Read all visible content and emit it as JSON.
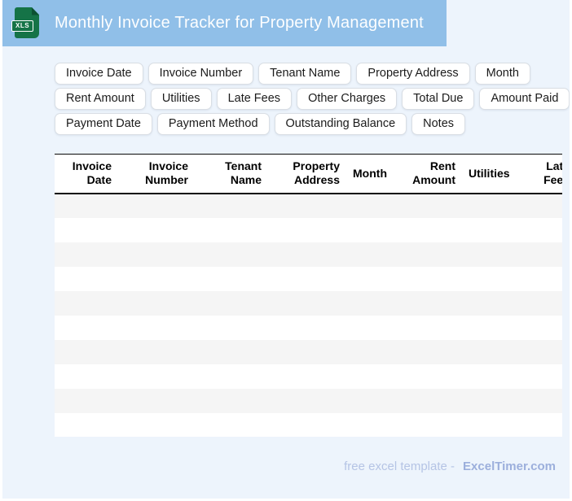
{
  "header": {
    "title": "Monthly Invoice Tracker for Property Management",
    "file_badge": "XLS"
  },
  "chip_rows": [
    [
      "Invoice Date",
      "Invoice Number",
      "Tenant Name",
      "Property Address",
      "Month"
    ],
    [
      "Rent Amount",
      "Utilities",
      "Late Fees",
      "Other Charges",
      "Total Due",
      "Amount Paid"
    ],
    [
      "Payment Date",
      "Payment Method",
      "Outstanding Balance",
      "Notes"
    ]
  ],
  "table": {
    "columns": [
      "Invoice Date",
      "Invoice Number",
      "Tenant Name",
      "Property Address",
      "Month",
      "Rent Amount",
      "Utilities",
      "Late Fees"
    ],
    "empty_row_count": 10,
    "rows": []
  },
  "footer": {
    "tagline": "free excel template -",
    "brand": "ExcelTimer.com"
  },
  "colors": {
    "header_band": "#90BFE8",
    "page_background": "#EDF4FC",
    "row_stripe": "#F5F5F5",
    "icon_green": "#157347"
  }
}
